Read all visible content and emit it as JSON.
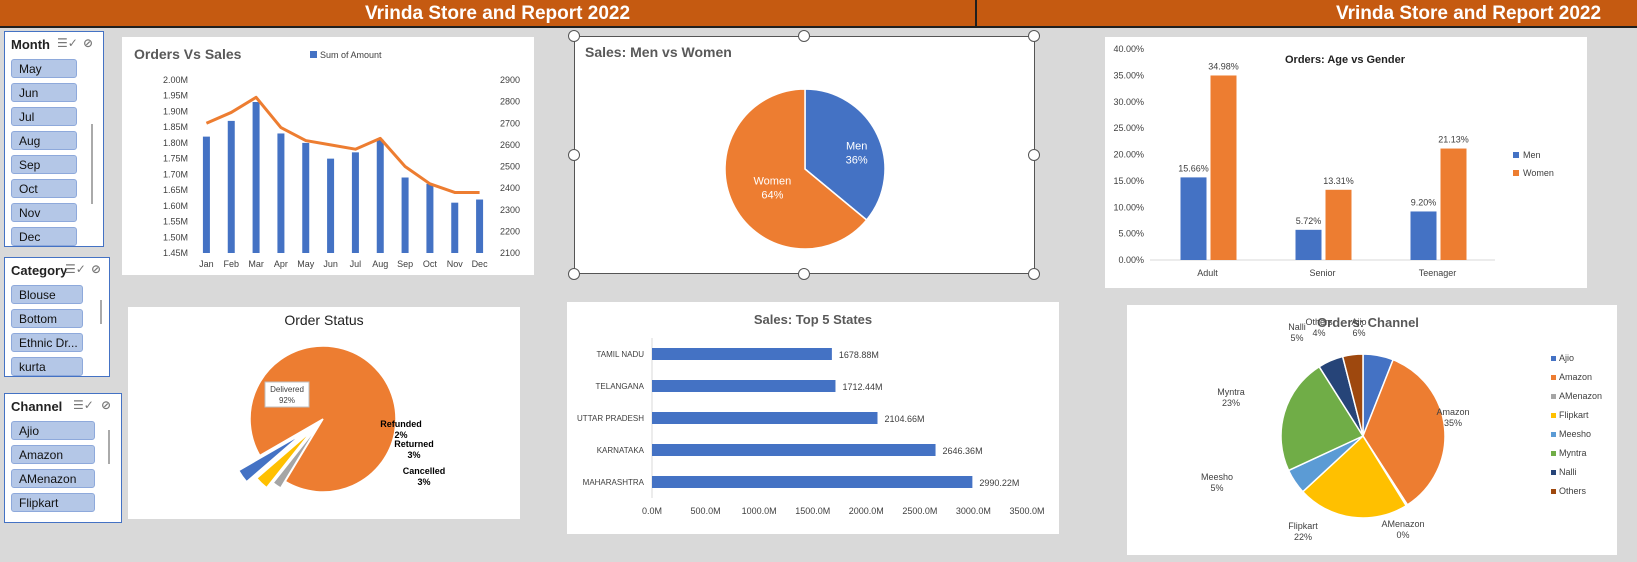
{
  "header": {
    "title_left": "Vrinda Store and Report 2022",
    "title_right": "Vrinda Store and Report 2022"
  },
  "slicers": {
    "month": {
      "title": "Month",
      "items": [
        "May",
        "Jun",
        "Jul",
        "Aug",
        "Sep",
        "Oct",
        "Nov",
        "Dec"
      ]
    },
    "category": {
      "title": "Category",
      "items": [
        "Blouse",
        "Bottom",
        "Ethnic Dr...",
        "kurta"
      ]
    },
    "channel": {
      "title": "Channel",
      "items": [
        "Ajio",
        "Amazon",
        "AMenazon",
        "Flipkart"
      ]
    }
  },
  "icons": {
    "multi_select": "multi-select-icon",
    "clear_filter": "clear-filter-icon"
  },
  "colors": {
    "blue": "#4472c4",
    "orange": "#ed7d31",
    "gray": "#a5a5a5",
    "yellow": "#ffc000",
    "lightblue": "#5b9bd5",
    "green": "#70ad47",
    "navy": "#264478",
    "brown": "#9e480e",
    "header": "#c55a11"
  },
  "chart_data": [
    {
      "id": "orders_vs_sales",
      "type": "bar",
      "title": "Orders Vs Sales",
      "legend": [
        "Sum of Amount"
      ],
      "legend_placement": "top",
      "categories": [
        "Jan",
        "Feb",
        "Mar",
        "Apr",
        "May",
        "Jun",
        "Jul",
        "Aug",
        "Sep",
        "Oct",
        "Nov",
        "Dec"
      ],
      "series": [
        {
          "name": "Sum of Amount",
          "kind": "bar",
          "axis": "left",
          "values": [
            1.82,
            1.87,
            1.93,
            1.83,
            1.8,
            1.75,
            1.77,
            1.81,
            1.69,
            1.67,
            1.61,
            1.62
          ]
        },
        {
          "kind": "line",
          "axis": "right",
          "values": [
            2700,
            2750,
            2820,
            2680,
            2620,
            2600,
            2580,
            2630,
            2500,
            2420,
            2380,
            2380
          ]
        }
      ],
      "y_left_ticks": [
        "2.00M",
        "1.95M",
        "1.90M",
        "1.85M",
        "1.80M",
        "1.75M",
        "1.70M",
        "1.65M",
        "1.60M",
        "1.55M",
        "1.50M",
        "1.45M"
      ],
      "ylim_left": [
        1.45,
        2.0
      ],
      "y_right_ticks": [
        "2900",
        "2800",
        "2700",
        "2600",
        "2500",
        "2400",
        "2300",
        "2200",
        "2100"
      ],
      "ylim_right": [
        2100,
        2900
      ]
    },
    {
      "id": "sales_men_women",
      "type": "pie",
      "title": "Sales: Men vs Women",
      "slices": [
        {
          "name": "Men",
          "label": "36%",
          "value": 36
        },
        {
          "name": "Women",
          "label": "64%",
          "value": 64
        }
      ]
    },
    {
      "id": "orders_age_gender",
      "type": "bar",
      "title": "Orders: Age vs Gender",
      "categories": [
        "Adult",
        "Senior",
        "Teenager"
      ],
      "series": [
        {
          "name": "Men",
          "values": [
            15.66,
            5.72,
            9.2
          ],
          "labels": [
            "15.66%",
            "5.72%",
            "9.20%"
          ]
        },
        {
          "name": "Women",
          "values": [
            34.98,
            13.31,
            21.13
          ],
          "labels": [
            "34.98%",
            "13.31%",
            "21.13%"
          ]
        }
      ],
      "y_ticks": [
        "40.00%",
        "35.00%",
        "30.00%",
        "25.00%",
        "20.00%",
        "15.00%",
        "10.00%",
        "5.00%",
        "0.00%"
      ],
      "ylim": [
        0,
        40
      ],
      "legend_placement": "right"
    },
    {
      "id": "order_status",
      "type": "pie",
      "title": "Order Status",
      "slices": [
        {
          "name": "Delivered",
          "label": "92%",
          "value": 92
        },
        {
          "name": "Refunded",
          "label": "2%",
          "value": 2
        },
        {
          "name": "Returned",
          "label": "3%",
          "value": 3
        },
        {
          "name": "Cancelled",
          "label": "3%",
          "value": 3
        }
      ]
    },
    {
      "id": "top5_states",
      "type": "bar",
      "orientation": "horizontal",
      "title": "Sales: Top 5 States",
      "categories": [
        "TAMIL NADU",
        "TELANGANA",
        "UTTAR PRADESH",
        "KARNATAKA",
        "MAHARASHTRA"
      ],
      "values": [
        1678.88,
        1712.44,
        2104.66,
        2646.36,
        2990.22
      ],
      "labels": [
        "1678.88M",
        "1712.44M",
        "2104.66M",
        "2646.36M",
        "2990.22M"
      ],
      "x_ticks": [
        "0.0M",
        "500.0M",
        "1000.0M",
        "1500.0M",
        "2000.0M",
        "2500.0M",
        "3000.0M",
        "3500.0M"
      ],
      "xlim": [
        0,
        3500
      ]
    },
    {
      "id": "orders_channel",
      "type": "pie",
      "title": "Orders: Channel",
      "legend_placement": "right",
      "slices": [
        {
          "name": "Ajio",
          "label": "6%",
          "value": 6
        },
        {
          "name": "Amazon",
          "label": "35%",
          "value": 35
        },
        {
          "name": "AMenazon",
          "label": "0%",
          "value": 0.3
        },
        {
          "name": "Flipkart",
          "label": "22%",
          "value": 22
        },
        {
          "name": "Meesho",
          "label": "5%",
          "value": 5
        },
        {
          "name": "Myntra",
          "label": "23%",
          "value": 23
        },
        {
          "name": "Nalli",
          "label": "5%",
          "value": 5
        },
        {
          "name": "Others",
          "label": "4%",
          "value": 4
        }
      ]
    }
  ]
}
